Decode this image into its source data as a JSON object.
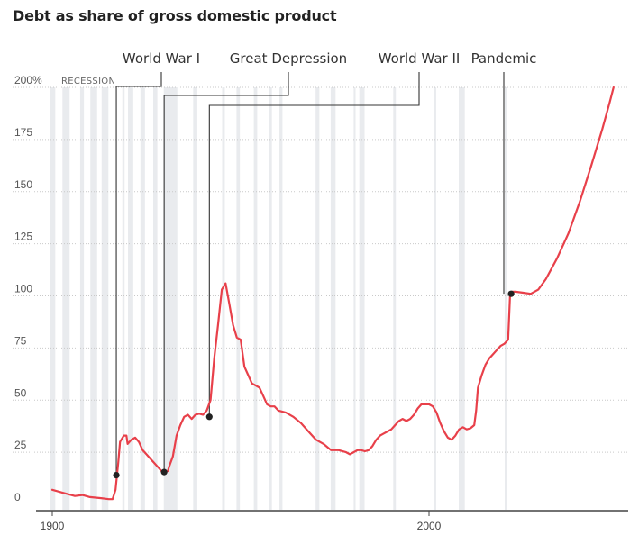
{
  "chart_data": {
    "type": "line",
    "title": "Debt as share of gross domestic product",
    "xlabel": "",
    "ylabel": "",
    "xlim": [
      1900,
      2053
    ],
    "ylim": [
      0,
      200
    ],
    "x_ticks": [
      1900,
      2000
    ],
    "y_ticks": [
      {
        "value": 0,
        "label": "0"
      },
      {
        "value": 25,
        "label": "25"
      },
      {
        "value": 50,
        "label": "50"
      },
      {
        "value": 75,
        "label": "75"
      },
      {
        "value": 100,
        "label": "100"
      },
      {
        "value": 125,
        "label": "125"
      },
      {
        "value": 150,
        "label": "150"
      },
      {
        "value": 175,
        "label": "175"
      },
      {
        "value": 200,
        "label": "200%"
      }
    ],
    "grid": true,
    "series": [
      {
        "color": "#e8404a",
        "points": [
          [
            1900,
            7
          ],
          [
            1903,
            5.5
          ],
          [
            1906,
            4
          ],
          [
            1908,
            4.5
          ],
          [
            1910,
            3.5
          ],
          [
            1913,
            3
          ],
          [
            1915,
            2.5
          ],
          [
            1916,
            2.5
          ],
          [
            1916.8,
            7
          ],
          [
            1917.5,
            20
          ],
          [
            1918,
            30
          ],
          [
            1919,
            33
          ],
          [
            1919.7,
            33
          ],
          [
            1920,
            29
          ],
          [
            1921,
            31
          ],
          [
            1922,
            32
          ],
          [
            1923,
            30
          ],
          [
            1924,
            26
          ],
          [
            1925,
            24
          ],
          [
            1926,
            22
          ],
          [
            1927,
            20
          ],
          [
            1928,
            18
          ],
          [
            1929,
            16
          ],
          [
            1930,
            15.5
          ],
          [
            1930.7,
            16
          ],
          [
            1931,
            18
          ],
          [
            1932,
            23
          ],
          [
            1933,
            33
          ],
          [
            1934,
            38
          ],
          [
            1935,
            42
          ],
          [
            1936,
            43
          ],
          [
            1937,
            41
          ],
          [
            1938,
            43
          ],
          [
            1939,
            43.5
          ],
          [
            1940,
            43
          ],
          [
            1941,
            45
          ],
          [
            1942,
            50
          ],
          [
            1943,
            70
          ],
          [
            1944,
            86
          ],
          [
            1945,
            103
          ],
          [
            1946,
            106
          ],
          [
            1947,
            96
          ],
          [
            1948,
            86
          ],
          [
            1949,
            80
          ],
          [
            1950,
            79
          ],
          [
            1951,
            66
          ],
          [
            1952,
            62
          ],
          [
            1953,
            58
          ],
          [
            1954,
            57
          ],
          [
            1955,
            56
          ],
          [
            1956,
            52
          ],
          [
            1957,
            48
          ],
          [
            1958,
            47
          ],
          [
            1959,
            47
          ],
          [
            1960,
            45
          ],
          [
            1962,
            44
          ],
          [
            1964,
            42
          ],
          [
            1966,
            39
          ],
          [
            1968,
            35
          ],
          [
            1970,
            31
          ],
          [
            1972,
            29
          ],
          [
            1974,
            26
          ],
          [
            1976,
            26
          ],
          [
            1978,
            25
          ],
          [
            1979,
            24
          ],
          [
            1980,
            25
          ],
          [
            1981,
            26
          ],
          [
            1982,
            26
          ],
          [
            1983,
            25.5
          ],
          [
            1984,
            26
          ],
          [
            1985,
            28
          ],
          [
            1986,
            31
          ],
          [
            1987,
            33
          ],
          [
            1988,
            34
          ],
          [
            1989,
            35
          ],
          [
            1990,
            36
          ],
          [
            1991,
            38
          ],
          [
            1992,
            40
          ],
          [
            1993,
            41
          ],
          [
            1994,
            40
          ],
          [
            1995,
            41
          ],
          [
            1996,
            43
          ],
          [
            1997,
            46
          ],
          [
            1998,
            48
          ],
          [
            2000,
            48
          ],
          [
            2001,
            47
          ],
          [
            2002,
            44
          ],
          [
            2003,
            39
          ],
          [
            2004,
            35
          ],
          [
            2005,
            32
          ],
          [
            2006,
            31
          ],
          [
            2007,
            33
          ],
          [
            2008,
            36
          ],
          [
            2009,
            37
          ],
          [
            2010,
            36
          ],
          [
            2011,
            36.5
          ],
          [
            2012,
            38
          ],
          [
            2012.5,
            45
          ],
          [
            2013,
            56
          ],
          [
            2014,
            62
          ],
          [
            2015,
            67
          ],
          [
            2016,
            70
          ],
          [
            2017,
            72
          ],
          [
            2018,
            74
          ],
          [
            2019,
            76
          ],
          [
            2020,
            77
          ],
          [
            2021,
            79
          ],
          [
            2021.5,
            100
          ],
          [
            2022,
            102
          ],
          [
            2023,
            102
          ],
          [
            2025,
            101.5
          ],
          [
            2027,
            101
          ],
          [
            2029,
            103
          ],
          [
            2031,
            108
          ],
          [
            2034,
            118
          ],
          [
            2037,
            130
          ],
          [
            2040,
            145
          ],
          [
            2043,
            162
          ],
          [
            2046,
            180
          ],
          [
            2048,
            193
          ],
          [
            2049,
            200
          ]
        ]
      }
    ],
    "recession_label": "RECESSION",
    "recessions": [
      [
        1899.3,
        1900.8
      ],
      [
        1902.7,
        1904.6
      ],
      [
        1907.4,
        1908.4
      ],
      [
        1910.1,
        1911.9
      ],
      [
        1913.1,
        1914.9
      ],
      [
        1918.6,
        1919.2
      ],
      [
        1920.1,
        1921.5
      ],
      [
        1923.4,
        1924.6
      ],
      [
        1926.8,
        1927.9
      ],
      [
        1929.6,
        1933.2
      ],
      [
        1937.4,
        1938.5
      ],
      [
        1945.1,
        1945.8
      ],
      [
        1948.9,
        1949.8
      ],
      [
        1953.5,
        1954.4
      ],
      [
        1957.6,
        1958.3
      ],
      [
        1960.3,
        1961.1
      ],
      [
        1969.9,
        1970.9
      ],
      [
        1973.9,
        1975.2
      ],
      [
        1980.0,
        1980.5
      ],
      [
        1981.5,
        1982.9
      ],
      [
        1990.5,
        1991.2
      ],
      [
        2001.2,
        2001.9
      ],
      [
        2007.9,
        2009.5
      ],
      [
        2020.1,
        2020.4
      ]
    ],
    "annotations": [
      {
        "label": "World War I",
        "year": 1917,
        "value": 14
      },
      {
        "label": "Great Depression",
        "year": 1929.7,
        "value": 15.5
      },
      {
        "label": "World War II",
        "year": 1941.7,
        "value": 42
      },
      {
        "label": "Pandemic",
        "year": 2021.8,
        "value": 101
      }
    ]
  }
}
